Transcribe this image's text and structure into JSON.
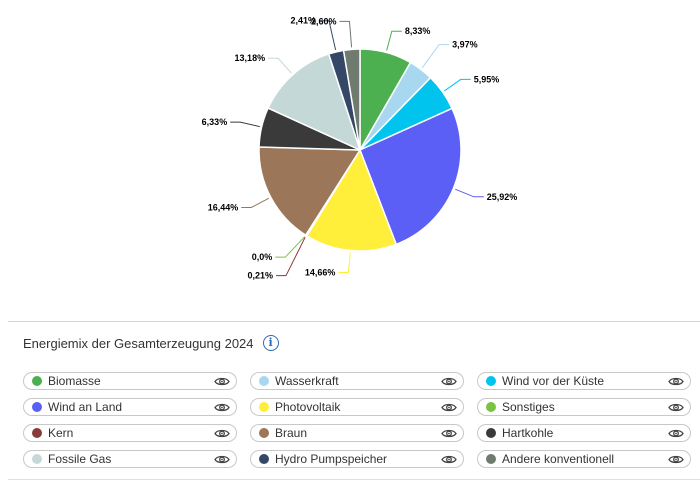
{
  "chart_data": {
    "type": "pie",
    "title": "Energiemix der Gesamterzeugung 2024",
    "slices": [
      {
        "label": "Biomasse",
        "value": 8.33,
        "value_label": "8,33%",
        "color": "#4caf50"
      },
      {
        "label": "Wasserkraft",
        "value": 3.97,
        "value_label": "3,97%",
        "color": "#a8d8f0"
      },
      {
        "label": "Wind vor der Küste",
        "value": 5.95,
        "value_label": "5,95%",
        "color": "#00c4ee"
      },
      {
        "label": "Wind an Land",
        "value": 25.92,
        "value_label": "25,92%",
        "color": "#5b5ff5"
      },
      {
        "label": "Sonstiges",
        "value": 0.0,
        "value_label": "",
        "color": "#7cc242"
      },
      {
        "label": "Photovoltaik",
        "value": 14.66,
        "value_label": "14,66%",
        "color": "#ffef3a"
      },
      {
        "label": "Kern",
        "value": 0.21,
        "value_label": "0,21%",
        "color": "#8b3a3a"
      },
      {
        "label": "Sonstiges",
        "value": 0.0,
        "value_label": "0,0%",
        "color": "#7cc242"
      },
      {
        "label": "Braun",
        "value": 16.44,
        "value_label": "16,44%",
        "color": "#9c7658"
      },
      {
        "label": "Hartkohle",
        "value": 6.33,
        "value_label": "6,33%",
        "color": "#3a3a3a"
      },
      {
        "label": "Fossile Gas",
        "value": 13.18,
        "value_label": "13,18%",
        "color": "#c5d8d8"
      },
      {
        "label": "Hydro Pumpspeicher",
        "value": 2.41,
        "value_label": "2,41%",
        "color": "#344766"
      },
      {
        "label": "Andere konventionell",
        "value": 2.6,
        "value_label": "2,60%",
        "color": "#6e7b6e"
      }
    ]
  },
  "legend": {
    "title": "Energiemix der Gesamterzeugung 2024",
    "info_icon": "info-icon",
    "items": [
      {
        "label": "Biomasse",
        "color": "#4caf50"
      },
      {
        "label": "Wasserkraft",
        "color": "#a8d8f0"
      },
      {
        "label": "Wind vor der Küste",
        "color": "#00c4ee"
      },
      {
        "label": "Wind an Land",
        "color": "#5b5ff5"
      },
      {
        "label": "Photovoltaik",
        "color": "#ffef3a"
      },
      {
        "label": "Sonstiges",
        "color": "#7cc242"
      },
      {
        "label": "Kern",
        "color": "#8b3a3a"
      },
      {
        "label": "Braun",
        "color": "#9c7658"
      },
      {
        "label": "Hartkohle",
        "color": "#3a3a3a"
      },
      {
        "label": "Fossile Gas",
        "color": "#c5d8d8"
      },
      {
        "label": "Hydro Pumpspeicher",
        "color": "#344766"
      },
      {
        "label": "Andere konventionell",
        "color": "#6e7b6e"
      }
    ],
    "toggle_icon": "eye-icon"
  }
}
